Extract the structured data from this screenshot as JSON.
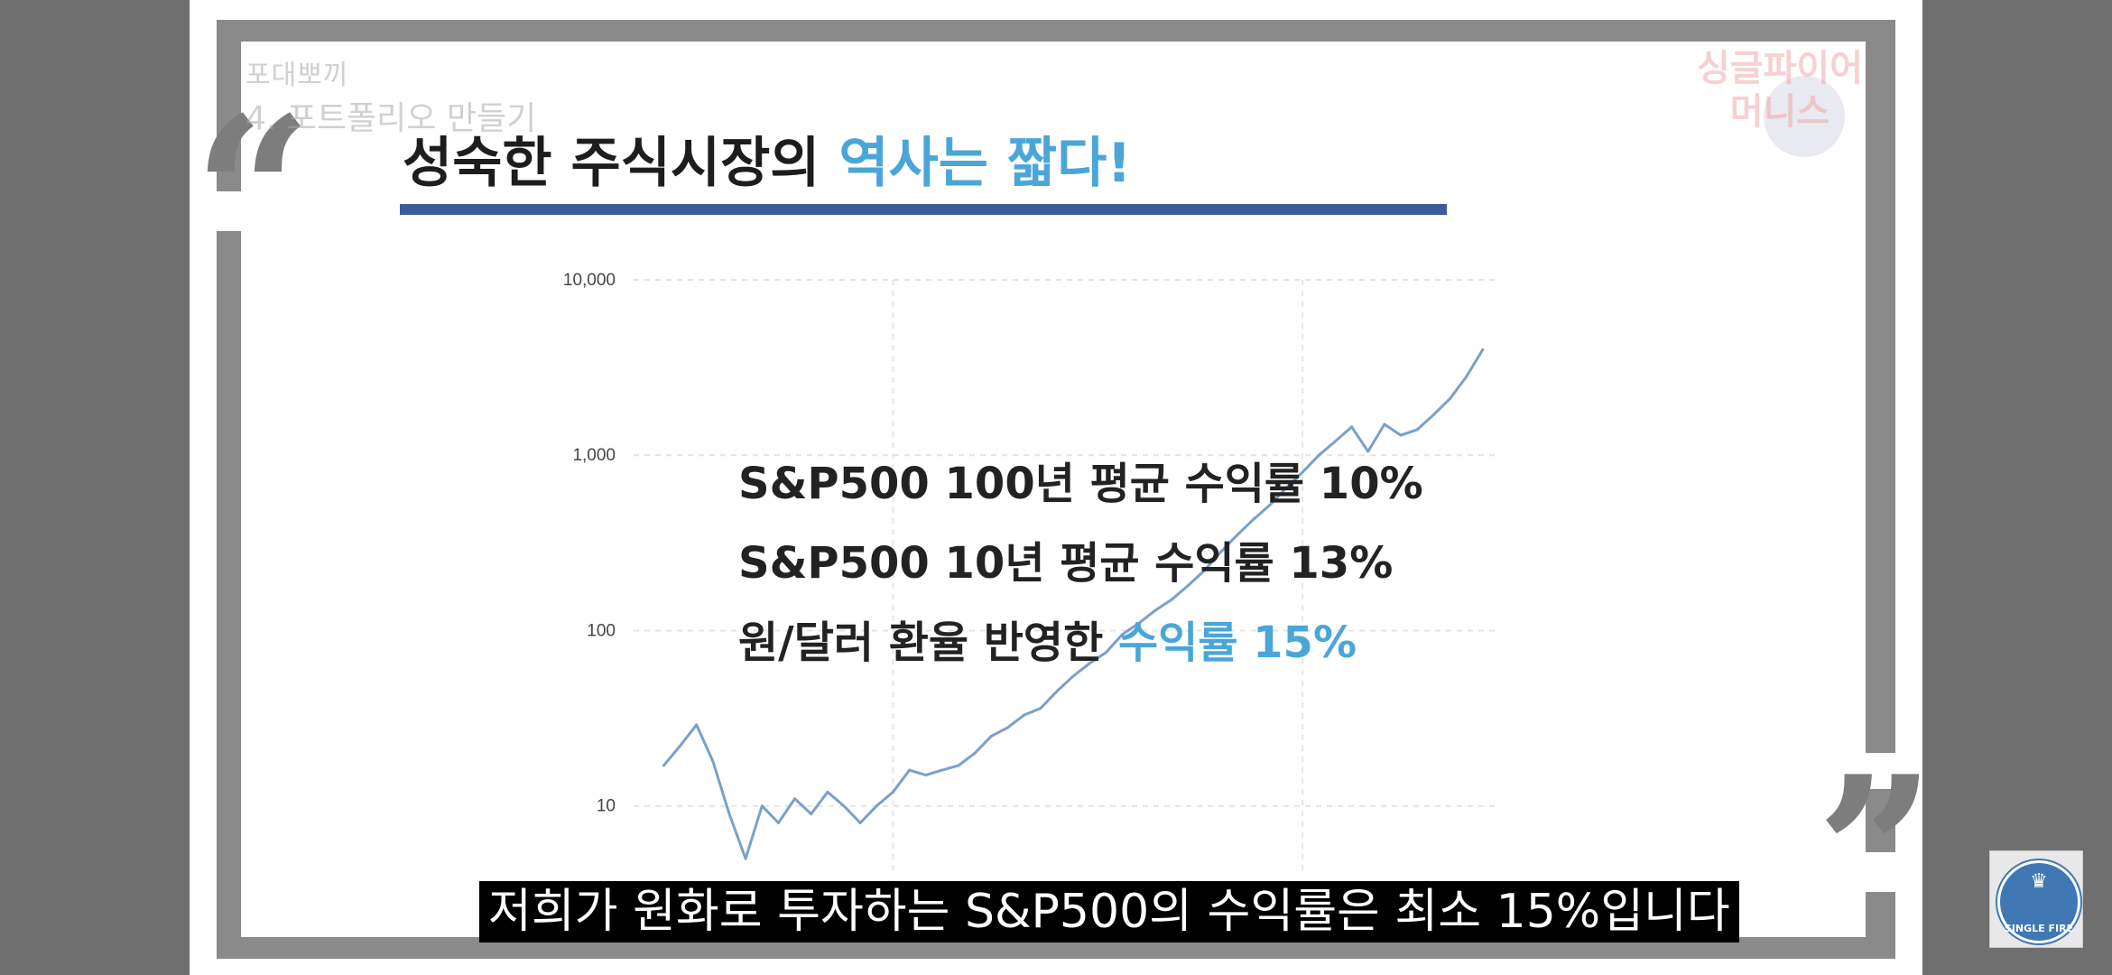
{
  "watermark": {
    "series": "포대뽀끼",
    "chapter": "4. 포트폴리오 만들기",
    "channel_line1": "싱글파이어",
    "channel_line2": "머니스"
  },
  "slide": {
    "quote_open": "“",
    "quote_close": "”",
    "title_main": "성숙한 주식시장의",
    "title_accent": "역사는 짧다!",
    "overlay_lines": [
      {
        "text": "S&P500 100년 평균 수익률 10%"
      },
      {
        "text": "S&P500 10년 평균 수익률 13%"
      },
      {
        "text_main": "원/달러 환율 반영한",
        "text_accent": "수익률 15%"
      }
    ]
  },
  "subtitle": "저희가 원화로 투자하는 S&P500의 수익률은 최소 15%입니다",
  "channel_logo": {
    "icon": "statue-of-liberty-icon",
    "text": "SINGLE FIRE"
  },
  "colors": {
    "accent": "#4aa6d8",
    "underline": "#3d5a9a",
    "line": "#7aa0cc"
  },
  "chart_data": {
    "type": "line",
    "title": "",
    "xlabel": "",
    "ylabel": "",
    "yscale": "log",
    "ylim": [
      4,
      10000
    ],
    "y_ticks": [
      "10,000",
      "1,000",
      "100",
      "10"
    ],
    "x": [
      0,
      2,
      4,
      6,
      8,
      10,
      12,
      14,
      16,
      18,
      20,
      22,
      24,
      26,
      28,
      30,
      32,
      34,
      36,
      38,
      40,
      42,
      44,
      46,
      48,
      50,
      52,
      54,
      56,
      58,
      60,
      62,
      64,
      66,
      68,
      70,
      72,
      74,
      76,
      78,
      80,
      82,
      84,
      86,
      88,
      90,
      92,
      94,
      96,
      98,
      100
    ],
    "xlim": [
      -5,
      103
    ],
    "series": [
      {
        "values": [
          17,
          22,
          29,
          18,
          9,
          5,
          10,
          8,
          11,
          9,
          12,
          10,
          8,
          10,
          12,
          16,
          15,
          16,
          17,
          20,
          25,
          28,
          33,
          36,
          45,
          55,
          65,
          75,
          95,
          110,
          130,
          150,
          180,
          220,
          280,
          350,
          430,
          520,
          650,
          800,
          1000,
          1200,
          1450,
          1050,
          1500,
          1300,
          1400,
          1700,
          2100,
          2800,
          4000
        ]
      }
    ],
    "grid": true,
    "legend": "none"
  }
}
